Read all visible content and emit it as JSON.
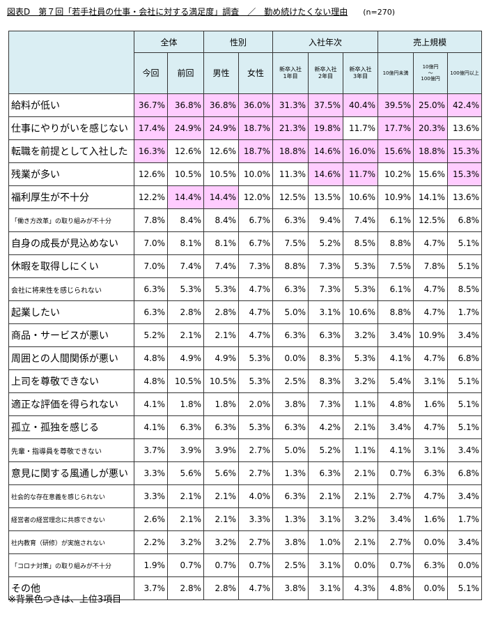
{
  "title": {
    "main": "図表D　第７回「若手社員の仕事・会社に対する満足度」調査　／　勤め続けたくない理由",
    "n": "(n=270)"
  },
  "colors": {
    "header_bg": "#daeef3",
    "highlight_bg": "#ffccff"
  },
  "groups": [
    "全体",
    "性別",
    "入社年次",
    "売上規模"
  ],
  "subheaders": [
    "今回",
    "前回",
    "男性",
    "女性",
    "新卒入社\n1年目",
    "新卒入社\n2年目",
    "新卒入社\n3年目",
    "10億円未満",
    "10億円\n～\n100億円",
    "100億円以上"
  ],
  "rows": [
    {
      "label": "給料が低い",
      "values": [
        "36.7%",
        "36.8%",
        "36.8%",
        "36.0%",
        "31.3%",
        "37.5%",
        "40.4%",
        "39.5%",
        "25.0%",
        "42.4%"
      ],
      "hl": [
        1,
        1,
        1,
        1,
        1,
        1,
        1,
        1,
        1,
        1
      ]
    },
    {
      "label": "仕事にやりがいを感じない",
      "values": [
        "17.4%",
        "24.9%",
        "24.9%",
        "18.7%",
        "21.3%",
        "19.8%",
        "11.7%",
        "17.7%",
        "20.3%",
        "13.6%"
      ],
      "hl": [
        1,
        1,
        1,
        1,
        1,
        1,
        0,
        1,
        1,
        0
      ]
    },
    {
      "label": "転職を前提として入社した",
      "values": [
        "16.3%",
        "12.6%",
        "12.6%",
        "18.7%",
        "18.8%",
        "14.6%",
        "16.0%",
        "15.6%",
        "18.8%",
        "15.3%"
      ],
      "hl": [
        1,
        0,
        0,
        1,
        1,
        1,
        1,
        1,
        1,
        1
      ]
    },
    {
      "label": "残業が多い",
      "values": [
        "12.6%",
        "10.5%",
        "10.5%",
        "10.0%",
        "11.3%",
        "14.6%",
        "11.7%",
        "10.2%",
        "15.6%",
        "15.3%"
      ],
      "hl": [
        0,
        0,
        0,
        0,
        0,
        1,
        1,
        0,
        0,
        1
      ]
    },
    {
      "label": "福利厚生が不十分",
      "values": [
        "12.2%",
        "14.4%",
        "14.4%",
        "12.0%",
        "12.5%",
        "13.5%",
        "10.6%",
        "10.9%",
        "14.1%",
        "13.6%"
      ],
      "hl": [
        0,
        1,
        1,
        0,
        0,
        0,
        0,
        0,
        0,
        0
      ]
    },
    {
      "label": "「働き方改革」の取り組みが不十分",
      "values": [
        "7.8%",
        "8.4%",
        "8.4%",
        "6.7%",
        "6.3%",
        "9.4%",
        "7.4%",
        "6.1%",
        "12.5%",
        "6.8%"
      ],
      "hl": [
        0,
        0,
        0,
        0,
        0,
        0,
        0,
        0,
        0,
        0
      ],
      "size": "xs"
    },
    {
      "label": "自身の成長が見込めない",
      "values": [
        "7.0%",
        "8.1%",
        "8.1%",
        "6.7%",
        "7.5%",
        "5.2%",
        "8.5%",
        "8.8%",
        "4.7%",
        "5.1%"
      ],
      "hl": [
        0,
        0,
        0,
        0,
        0,
        0,
        0,
        0,
        0,
        0
      ]
    },
    {
      "label": "休暇を取得しにくい",
      "values": [
        "7.0%",
        "7.4%",
        "7.4%",
        "7.3%",
        "8.8%",
        "7.3%",
        "5.3%",
        "7.5%",
        "7.8%",
        "5.1%"
      ],
      "hl": [
        0,
        0,
        0,
        0,
        0,
        0,
        0,
        0,
        0,
        0
      ]
    },
    {
      "label": "会社に将来性を感じられない",
      "values": [
        "6.3%",
        "5.3%",
        "5.3%",
        "4.7%",
        "6.3%",
        "7.3%",
        "5.3%",
        "6.1%",
        "4.7%",
        "8.5%"
      ],
      "hl": [
        0,
        0,
        0,
        0,
        0,
        0,
        0,
        0,
        0,
        0
      ],
      "size": "sm"
    },
    {
      "label": "起業したい",
      "values": [
        "6.3%",
        "2.8%",
        "2.8%",
        "4.7%",
        "5.0%",
        "3.1%",
        "10.6%",
        "8.8%",
        "4.7%",
        "1.7%"
      ],
      "hl": [
        0,
        0,
        0,
        0,
        0,
        0,
        0,
        0,
        0,
        0
      ]
    },
    {
      "label": "商品・サービスが悪い",
      "values": [
        "5.2%",
        "2.1%",
        "2.1%",
        "4.7%",
        "6.3%",
        "6.3%",
        "3.2%",
        "3.4%",
        "10.9%",
        "3.4%"
      ],
      "hl": [
        0,
        0,
        0,
        0,
        0,
        0,
        0,
        0,
        0,
        0
      ]
    },
    {
      "label": "周囲との人間関係が悪い",
      "values": [
        "4.8%",
        "4.9%",
        "4.9%",
        "5.3%",
        "0.0%",
        "8.3%",
        "5.3%",
        "4.1%",
        "4.7%",
        "6.8%"
      ],
      "hl": [
        0,
        0,
        0,
        0,
        0,
        0,
        0,
        0,
        0,
        0
      ]
    },
    {
      "label": "上司を尊敬できない",
      "values": [
        "4.8%",
        "10.5%",
        "10.5%",
        "5.3%",
        "2.5%",
        "8.3%",
        "3.2%",
        "5.4%",
        "3.1%",
        "5.1%"
      ],
      "hl": [
        0,
        0,
        0,
        0,
        0,
        0,
        0,
        0,
        0,
        0
      ]
    },
    {
      "label": "適正な評価を得られない",
      "values": [
        "4.1%",
        "1.8%",
        "1.8%",
        "2.0%",
        "3.8%",
        "7.3%",
        "1.1%",
        "4.8%",
        "1.6%",
        "5.1%"
      ],
      "hl": [
        0,
        0,
        0,
        0,
        0,
        0,
        0,
        0,
        0,
        0
      ]
    },
    {
      "label": "孤立・孤独を感じる",
      "values": [
        "4.1%",
        "6.3%",
        "6.3%",
        "5.3%",
        "6.3%",
        "4.2%",
        "2.1%",
        "3.4%",
        "4.7%",
        "5.1%"
      ],
      "hl": [
        0,
        0,
        0,
        0,
        0,
        0,
        0,
        0,
        0,
        0
      ]
    },
    {
      "label": "先輩・指導員を尊敬できない",
      "values": [
        "3.7%",
        "3.9%",
        "3.9%",
        "2.7%",
        "5.0%",
        "5.2%",
        "1.1%",
        "4.1%",
        "3.1%",
        "3.4%"
      ],
      "hl": [
        0,
        0,
        0,
        0,
        0,
        0,
        0,
        0,
        0,
        0
      ],
      "size": "sm"
    },
    {
      "label": "意見に関する風通しが悪い",
      "values": [
        "3.3%",
        "5.6%",
        "5.6%",
        "2.7%",
        "1.3%",
        "6.3%",
        "2.1%",
        "0.7%",
        "6.3%",
        "6.8%"
      ],
      "hl": [
        0,
        0,
        0,
        0,
        0,
        0,
        0,
        0,
        0,
        0
      ]
    },
    {
      "label": "社会的な存在意義を感じられない",
      "values": [
        "3.3%",
        "2.1%",
        "2.1%",
        "4.0%",
        "6.3%",
        "2.1%",
        "2.1%",
        "2.7%",
        "4.7%",
        "3.4%"
      ],
      "hl": [
        0,
        0,
        0,
        0,
        0,
        0,
        0,
        0,
        0,
        0
      ],
      "size": "xs"
    },
    {
      "label": "経営者の経営理念に共感できない",
      "values": [
        "2.6%",
        "2.1%",
        "2.1%",
        "3.3%",
        "1.3%",
        "3.1%",
        "3.2%",
        "3.4%",
        "1.6%",
        "1.7%"
      ],
      "hl": [
        0,
        0,
        0,
        0,
        0,
        0,
        0,
        0,
        0,
        0
      ],
      "size": "xs"
    },
    {
      "label": "社内教育（研修）が実施されない",
      "values": [
        "2.2%",
        "3.2%",
        "3.2%",
        "2.7%",
        "3.8%",
        "1.0%",
        "2.1%",
        "2.7%",
        "0.0%",
        "3.4%"
      ],
      "hl": [
        0,
        0,
        0,
        0,
        0,
        0,
        0,
        0,
        0,
        0
      ],
      "size": "xs"
    },
    {
      "label": "「コロナ対策」の取り組みが不十分",
      "values": [
        "1.9%",
        "0.7%",
        "0.7%",
        "0.7%",
        "2.5%",
        "3.1%",
        "0.0%",
        "0.7%",
        "6.3%",
        "0.0%"
      ],
      "hl": [
        0,
        0,
        0,
        0,
        0,
        0,
        0,
        0,
        0,
        0
      ],
      "size": "xs"
    },
    {
      "label": "その他",
      "values": [
        "3.7%",
        "2.8%",
        "2.8%",
        "4.7%",
        "3.8%",
        "3.1%",
        "4.3%",
        "4.8%",
        "0.0%",
        "5.1%"
      ],
      "hl": [
        0,
        0,
        0,
        0,
        0,
        0,
        0,
        0,
        0,
        0
      ]
    }
  ],
  "note": "※背景色つきは、上位3項目"
}
